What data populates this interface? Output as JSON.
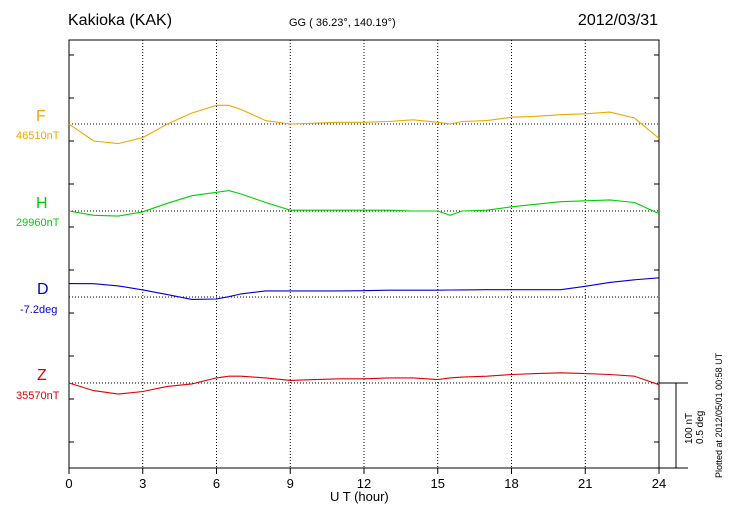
{
  "header": {
    "station": "Kakioka (KAK)",
    "coords": "GG ( 36.23°, 140.19°)",
    "date": "2012/03/31"
  },
  "footer": {
    "plotted": "Plotted at 2012/05/01 00:58 UT",
    "scale_nt": "100 nT",
    "scale_deg": "0.5 deg"
  },
  "colors": {
    "F": "#f0a800",
    "H": "#00d000",
    "D": "#0000d0",
    "Z": "#e00000"
  },
  "chart_data": {
    "type": "line",
    "xlabel": "U T (hour)",
    "xlim": [
      0,
      24
    ],
    "xticks": [
      "0",
      "3",
      "6",
      "9",
      "12",
      "15",
      "18",
      "21",
      "24"
    ],
    "scale": "100 nT / 0.5 deg",
    "x": [
      0,
      1,
      2,
      3,
      4,
      5,
      6,
      6.5,
      7,
      8,
      9,
      10,
      11,
      12,
      13,
      14,
      15,
      15.5,
      16,
      17,
      18,
      19,
      20,
      21,
      22,
      23,
      24
    ],
    "series": [
      {
        "name": "F",
        "baseline_label": "46510nT",
        "baseline": 46510,
        "unit": "nT",
        "color": "#f0a800",
        "values": [
          46510,
          46490,
          46487,
          46494,
          46510,
          46523,
          46532,
          46532,
          46527,
          46514,
          46510,
          46511,
          46512,
          46512,
          46513,
          46515,
          46512,
          46510,
          46513,
          46514,
          46518,
          46519,
          46521,
          46522,
          46524,
          46517,
          46493
        ]
      },
      {
        "name": "H",
        "baseline_label": "29960nT",
        "baseline": 29960,
        "unit": "nT",
        "color": "#00d000",
        "values": [
          29960,
          29955,
          29954,
          29959,
          29969,
          29978,
          29982,
          29984,
          29980,
          29970,
          29961,
          29961,
          29961,
          29961,
          29961,
          29960,
          29960,
          29955,
          29960,
          29961,
          29965,
          29968,
          29971,
          29972,
          29973,
          29970,
          29957
        ]
      },
      {
        "name": "D",
        "baseline_label": "-7.2deg",
        "baseline": -7.2,
        "unit": "deg",
        "color": "#0000d0",
        "values": [
          -7.121,
          -7.122,
          -7.135,
          -7.158,
          -7.186,
          -7.214,
          -7.212,
          -7.198,
          -7.182,
          -7.164,
          -7.164,
          -7.164,
          -7.164,
          -7.163,
          -7.16,
          -7.16,
          -7.16,
          -7.159,
          -7.158,
          -7.157,
          -7.157,
          -7.157,
          -7.157,
          -7.137,
          -7.114,
          -7.099,
          -7.087
        ]
      },
      {
        "name": "Z",
        "baseline_label": "35570nT",
        "baseline": 35570,
        "unit": "nT",
        "color": "#e00000",
        "values": [
          35570,
          35561,
          35557,
          35560,
          35566,
          35569,
          35576,
          35578,
          35578,
          35576,
          35573,
          35574,
          35575,
          35575,
          35576,
          35576,
          35574,
          35576,
          35577,
          35578,
          35580,
          35581,
          35582,
          35581,
          35580,
          35578,
          35568
        ]
      }
    ]
  }
}
